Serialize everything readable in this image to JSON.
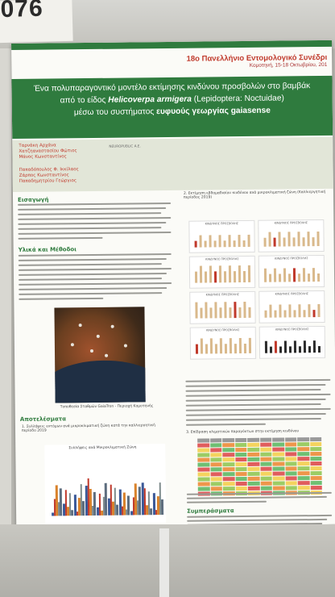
{
  "wall": {
    "poster_number": "-076"
  },
  "conference": {
    "title": "18ο Πανελλήνιο Εντομολογικό Συνέδρι",
    "location_dates": "Κομοτηνή, 15-18 Οκτωβρίου, 201"
  },
  "title": {
    "line1": "Ένα πολυπαραγοντικό μοντέλο εκτίμησης κινδύνου προσβολών στο βαμβάκ",
    "line2_prefix": "από το είδος",
    "line2_species": "Helicoverpa armigera",
    "line2_suffix": "(Lepidoptera: Noctuidae)",
    "line3_prefix": "μέσω του συστήματος",
    "line3_emph": "ευφυούς γεωργίας gaiasense"
  },
  "authors": {
    "group1": [
      "Ταρνάκη Αρχάνα",
      "Χατζηαναστασίου Φώτιος",
      "Μάνος Κωνσταντίνος"
    ],
    "group1_affiliation": "NEUROPUBLIC A.E.",
    "group2": [
      "Παπαδόπουλος Φ. Ικκίλαος",
      "Ζάρπος Κωνσταντίνος",
      "Παπαδημητρίου Γεώργιος"
    ]
  },
  "sections": {
    "intro": "Εισαγωγή",
    "materials": "Υλικά και Μέθοδοι",
    "results": "Αποτελέσματα",
    "conclusions": "Συμπεράσματα"
  },
  "map_caption": "Τοποθεσία Σταθμών GaiaTron - Περιοχή Κομοτηνής",
  "results_subtitle": "1. Συλλήψεις εντόμων ανά μικροκλιματική ζώνη κατά την καλλιεργητική περίοδο 2019",
  "risk_subtitle": "2. Εκτίμηση εβδομαδιαίου κινδύνου ανά μικροκλιματική ζώνη (Καλλιεργητική περίοδος 2019)",
  "charts": {
    "small_title": "ΚΙΝΔΥΝΟΣ ΠΡΟΣΒΟΛΗΣ",
    "big_title": "Συλλήψεις ανά Μικροκλιματική Ζώνη",
    "colors": {
      "bar": "#d9b98c",
      "highlight": "#c0392b",
      "dark": "#2b2b2b"
    }
  },
  "heatmap_caption": "3. Επίδραση κλιματικών παραγόντων στην εκτίμηση κινδύνου"
}
